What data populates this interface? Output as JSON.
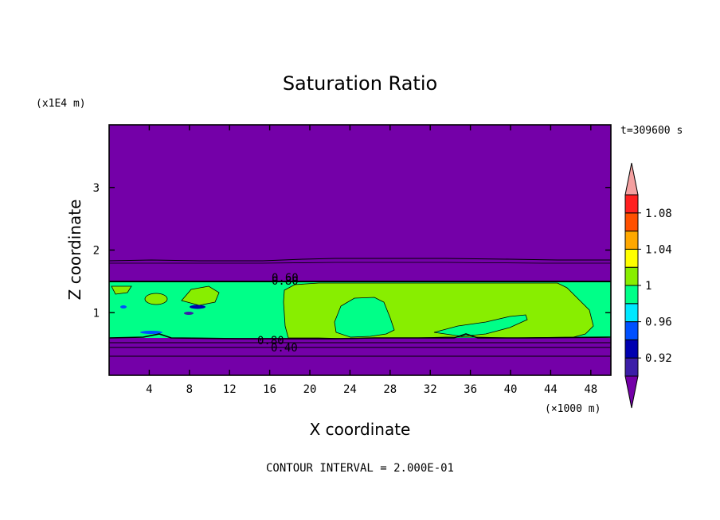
{
  "chart_data": {
    "type": "heatmap",
    "title": "Saturation Ratio",
    "xlabel": "X coordinate",
    "ylabel": "Z coordinate",
    "x_unit": "(×1000 m)",
    "y_unit": "(x1E4 m)",
    "time_label": "t=309600 s",
    "footer": "CONTOUR INTERVAL = 2.000E-01",
    "xlim": [
      0,
      50
    ],
    "ylim": [
      0,
      4
    ],
    "x_ticks": [
      "4",
      "8",
      "12",
      "16",
      "20",
      "24",
      "28",
      "32",
      "36",
      "40",
      "44",
      "48"
    ],
    "y_ticks": [
      "1",
      "2",
      "3"
    ],
    "contour_labels": [
      "0.80",
      "0.60",
      "0.80",
      "0.40"
    ],
    "colorbar": {
      "labels": [
        "0.92",
        "0.96",
        "1",
        "1.04",
        "1.08"
      ],
      "colors": [
        "#7400a8",
        "#3c1ea8",
        "#0000b0",
        "#0050ff",
        "#00e8ff",
        "#00ff88",
        "#88ee00",
        "#ffff00",
        "#ffa800",
        "#ff5000",
        "#ff2020",
        "#f4a0a0"
      ]
    },
    "regions": [
      {
        "name": "upper",
        "color": "#7400a8",
        "z": [
          1.5,
          4
        ]
      },
      {
        "name": "cloud-layer-left",
        "color": "#00ff88",
        "z": [
          0.6,
          1.5
        ],
        "x": [
          0,
          17.5
        ]
      },
      {
        "name": "cloud-layer-right",
        "color": "#88ee00",
        "z": [
          0.6,
          1.5
        ],
        "x": [
          17.5,
          48
        ]
      },
      {
        "name": "lower",
        "color": "#7400a8",
        "z": [
          0,
          0.6
        ]
      }
    ]
  }
}
